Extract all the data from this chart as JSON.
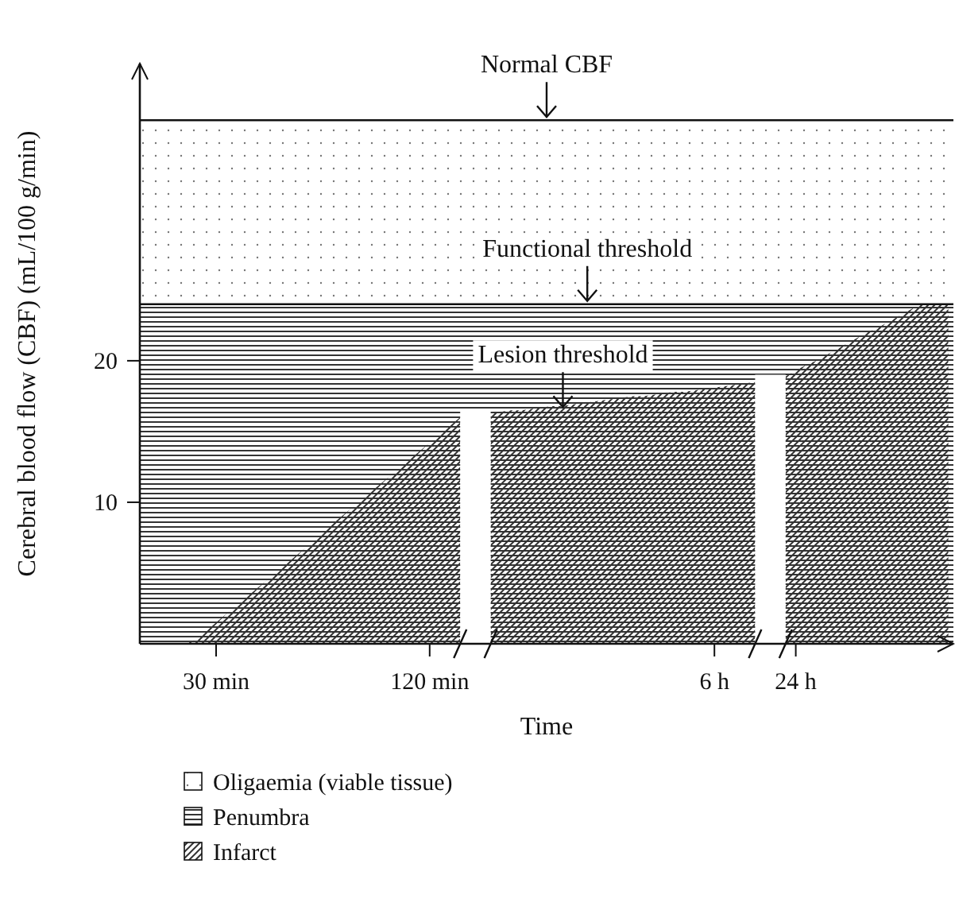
{
  "chart_data": {
    "type": "area",
    "xlabel": "Time",
    "ylabel": "Cerebral blood flow (CBF) (mL/100 g/min)",
    "ylim": [
      0,
      41
    ],
    "categories": [
      null,
      null,
      null,
      null,
      null,
      null,
      null,
      "30 min",
      null,
      null,
      null,
      null,
      null,
      null,
      null,
      null,
      null,
      null,
      null,
      null,
      null,
      null,
      null,
      null,
      null,
      null,
      null,
      null,
      "120 min",
      null,
      null,
      null,
      null,
      null,
      null,
      null,
      null,
      null,
      null,
      null,
      null,
      null,
      null,
      null,
      null,
      null,
      null,
      null,
      null,
      null,
      null,
      null,
      null,
      null,
      null,
      null,
      "6 h",
      null,
      null,
      null,
      null,
      null,
      null,
      null,
      "24 h",
      null,
      null,
      null,
      null,
      null,
      null,
      null,
      null,
      null,
      null,
      null,
      null,
      null,
      null,
      null
    ],
    "yticks": [
      10,
      20
    ],
    "series": [
      {
        "name": "Infarct",
        "color": "#333333",
        "values": [
          0,
          0,
          0,
          0,
          0,
          0.3,
          0.9,
          1.5,
          2.1,
          2.7,
          3.3,
          3.9,
          4.5,
          5.1,
          5.7,
          6.3,
          6.9,
          7.5,
          8.2,
          8.8,
          9.4,
          10,
          10.6,
          11.2,
          11.8,
          12.4,
          13,
          13.6,
          14.2,
          14.8,
          15.4,
          16,
          null,
          null,
          16.3,
          16.4,
          16.5,
          16.5,
          16.6,
          16.7,
          16.8,
          16.8,
          16.9,
          17,
          17.1,
          17.2,
          17.3,
          17.4,
          17.5,
          17.5,
          17.6,
          17.7,
          17.8,
          17.8,
          17.9,
          18,
          18.1,
          18.2,
          18.3,
          18.4,
          18.5,
          null,
          null,
          18.9,
          19.3,
          19.7,
          20,
          20.4,
          20.8,
          21.2,
          21.6,
          22,
          22.3,
          22.7,
          23.1,
          23.5,
          23.9,
          24,
          24,
          24
        ]
      }
    ],
    "bands": [
      {
        "axis": "y",
        "from": 24,
        "to": 37,
        "label": "Oligaemia (viable tissue)",
        "color": "#777777"
      },
      {
        "axis": "y",
        "from": 0,
        "to": 24,
        "label": "Penumbra",
        "color": "#333333"
      }
    ],
    "ref_lines": [
      {
        "axis": "y",
        "value": 37
      },
      {
        "axis": "y",
        "value": 24
      }
    ],
    "annotations": [
      {
        "text": "Normal CBF",
        "y": 37
      },
      {
        "text": "Functional threshold",
        "y": 24
      },
      {
        "text": "Lesion threshold",
        "y": 16.5
      }
    ],
    "legend": "bottom"
  }
}
